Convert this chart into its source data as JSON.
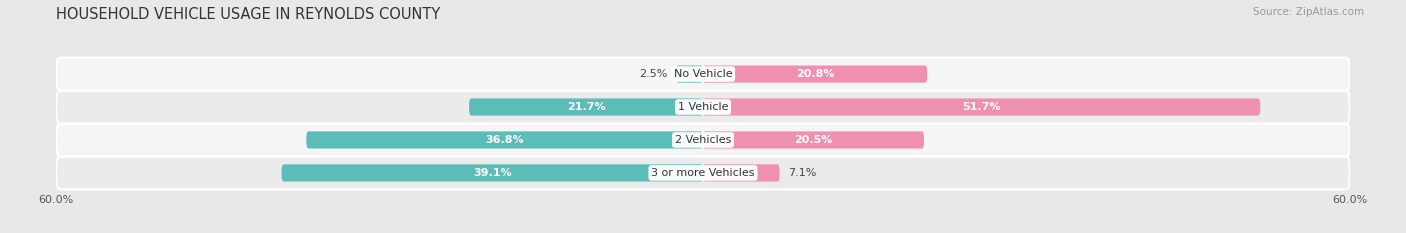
{
  "title": "HOUSEHOLD VEHICLE USAGE IN REYNOLDS COUNTY",
  "source": "Source: ZipAtlas.com",
  "categories": [
    "No Vehicle",
    "1 Vehicle",
    "2 Vehicles",
    "3 or more Vehicles"
  ],
  "owner_values": [
    2.5,
    21.7,
    36.8,
    39.1
  ],
  "renter_values": [
    20.8,
    51.7,
    20.5,
    7.1
  ],
  "owner_color": "#5bbcb8",
  "renter_color": "#f090b0",
  "xlim": [
    -60,
    60
  ],
  "background_color": "#e8e8e8",
  "row_bg_colors": [
    "#f5f5f5",
    "#ebebeb",
    "#f5f5f5",
    "#ebebeb"
  ],
  "title_fontsize": 10.5,
  "source_fontsize": 7.5,
  "label_fontsize": 8,
  "tick_fontsize": 8,
  "legend_fontsize": 8
}
